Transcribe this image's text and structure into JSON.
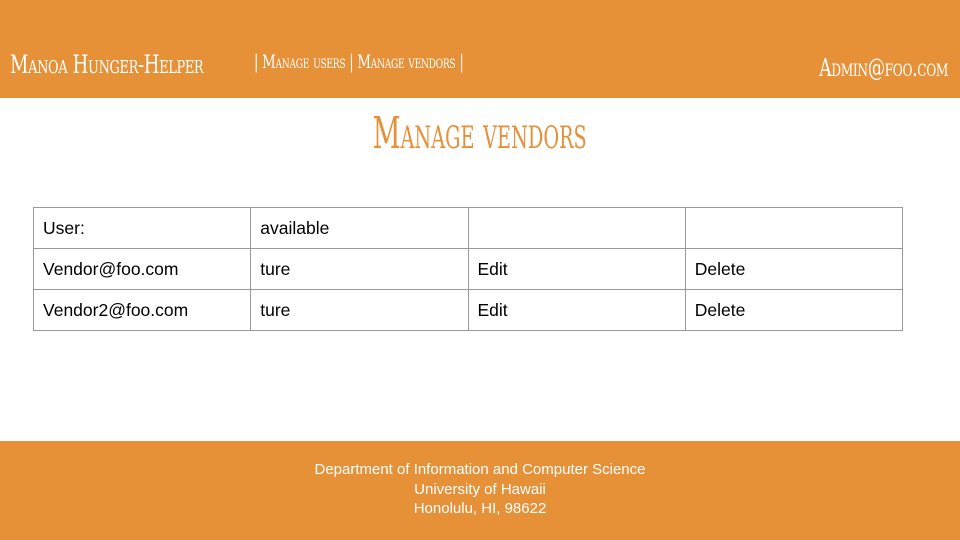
{
  "colors": {
    "accent": "#e69138",
    "on_accent": "#ffffff",
    "table_border": "#999999"
  },
  "header": {
    "brand": "Manoa Hunger-Helper",
    "nav": {
      "sep_left": "|",
      "manage_users": "Manage users",
      "sep_mid": "|",
      "manage_vendors": "Manage vendors",
      "sep_right": "|"
    },
    "user_email": "Admin@foo.com"
  },
  "main": {
    "title": "Manage vendors",
    "table": {
      "header": {
        "user": "User:",
        "available": "available",
        "col3": "",
        "col4": ""
      },
      "rows": [
        {
          "user": "Vendor@foo.com",
          "available": "ture",
          "edit": "Edit",
          "delete": "Delete"
        },
        {
          "user": "Vendor2@foo.com",
          "available": "ture",
          "edit": "Edit",
          "delete": "Delete"
        }
      ]
    }
  },
  "footer": {
    "line1": "Department of Information and Computer Science",
    "line2": "University of Hawaii",
    "line3": "Honolulu, HI, 98622"
  }
}
